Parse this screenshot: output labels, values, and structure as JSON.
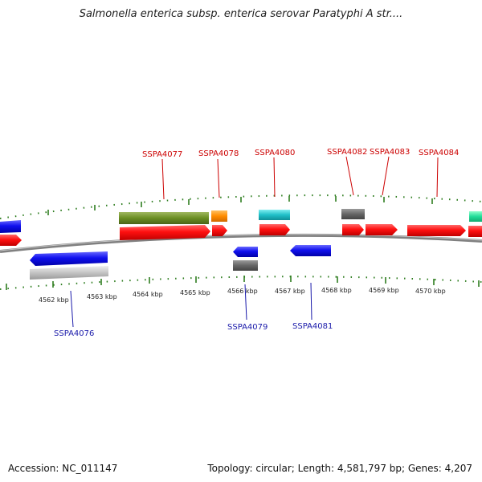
{
  "title": "Salmonella enterica subsp. enterica serovar Paratyphi A str....",
  "footer": {
    "accession": "Accession: NC_011147",
    "info": "Topology: circular; Length: 4,581,797 bp; Genes: 4,207"
  },
  "colors": {
    "forward_label": "#cc0000",
    "reverse_label": "#1a1aaa",
    "backbone": "#7a7a7a",
    "tick": "#2e7d1f"
  },
  "kbp_labels": [
    "4562 kbp",
    "4563 kbp",
    "4564 kbp",
    "4565 kbp",
    "4566 kbp",
    "4567 kbp",
    "4568 kbp",
    "4569 kbp",
    "4570 kbp"
  ],
  "gene_labels": [
    {
      "name": "SSPA4077",
      "strand": "forward"
    },
    {
      "name": "SSPA4078",
      "strand": "forward"
    },
    {
      "name": "SSPA4080",
      "strand": "forward"
    },
    {
      "name": "SSPA4082",
      "strand": "forward"
    },
    {
      "name": "SSPA4083",
      "strand": "forward"
    },
    {
      "name": "SSPA4084",
      "strand": "forward"
    },
    {
      "name": "SSPA4076",
      "strand": "reverse"
    },
    {
      "name": "SSPA4079",
      "strand": "reverse"
    },
    {
      "name": "SSPA4081",
      "strand": "reverse"
    }
  ],
  "features": [
    {
      "type": "reverse-cds",
      "color": "#1010dd"
    },
    {
      "type": "forward-cds",
      "color": "#ff0000"
    },
    {
      "type": "forward-cds",
      "color": "#ff0000"
    },
    {
      "type": "forward-cds",
      "color": "#ff0000"
    },
    {
      "type": "forward-cds",
      "color": "#ff0000"
    },
    {
      "type": "forward-cds",
      "color": "#ff0000"
    },
    {
      "type": "forward-cds",
      "color": "#ff0000"
    },
    {
      "type": "forward-cds",
      "color": "#ff0000"
    },
    {
      "type": "forward-cog-bar",
      "color": "#6b8e23"
    },
    {
      "type": "forward-cog-bar",
      "color": "#ff8c00"
    },
    {
      "type": "forward-cog-bar",
      "color": "#20c0c8"
    },
    {
      "type": "forward-cog-bar",
      "color": "#666666"
    },
    {
      "type": "forward-cog-bar",
      "color": "#22dd99"
    },
    {
      "type": "reverse-cds",
      "color": "#1010dd"
    },
    {
      "type": "reverse-cds",
      "color": "#1010dd"
    },
    {
      "type": "reverse-cds",
      "color": "#1010dd"
    },
    {
      "type": "reverse-cog-bar",
      "color": "#bbbbbb"
    },
    {
      "type": "reverse-cog-bar",
      "color": "#666666"
    }
  ]
}
